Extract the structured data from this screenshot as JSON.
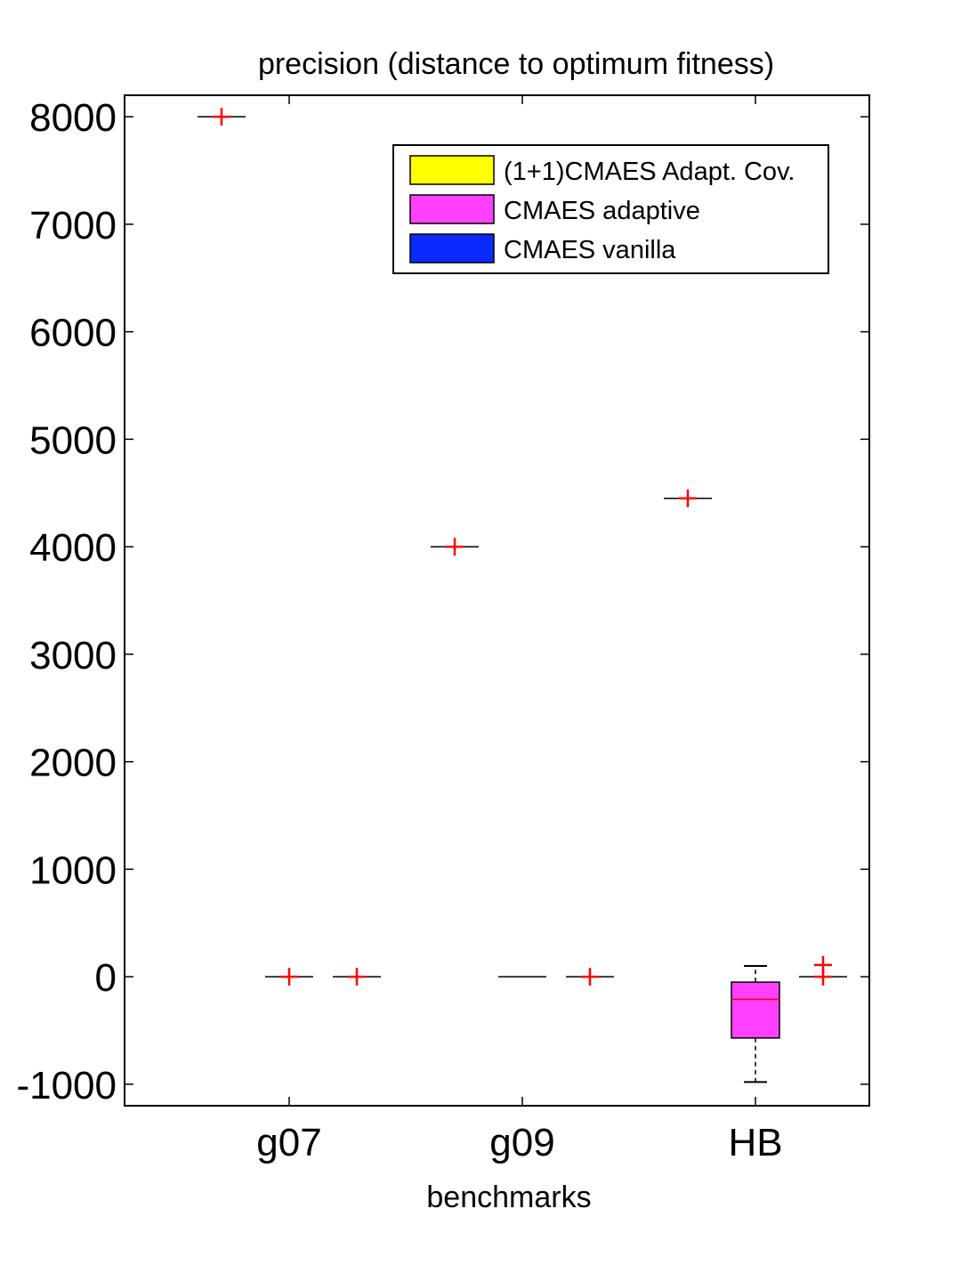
{
  "chart_data": {
    "type": "boxplot",
    "title": "precision (distance to optimum fitness)",
    "xlabel": "benchmarks",
    "ylabel": "",
    "ylim": [
      -1200,
      8200
    ],
    "yticks": [
      -1000,
      0,
      1000,
      2000,
      3000,
      4000,
      5000,
      6000,
      7000,
      8000
    ],
    "ytick_labels": [
      "-1000",
      "0",
      "1000",
      "2000",
      "3000",
      "4000",
      "5000",
      "6000",
      "7000",
      "8000"
    ],
    "categories": [
      "g07",
      "g09",
      "HB"
    ],
    "legend": {
      "placement": "top-right"
    },
    "grid": false,
    "series": [
      {
        "name": "(1+1)CMAES Adapt. Cov.",
        "color": "#ffff00",
        "boxes": [
          {
            "category": "g07",
            "q1": 8000,
            "median": 8000,
            "q3": 8000,
            "whisker_low": 8000,
            "whisker_high": 8000,
            "outliers": [
              8000
            ]
          },
          {
            "category": "g09",
            "q1": 4000,
            "median": 4000,
            "q3": 4000,
            "whisker_low": 4000,
            "whisker_high": 4000,
            "outliers": [
              4000
            ]
          },
          {
            "category": "HB",
            "q1": 4450,
            "median": 4450,
            "q3": 4450,
            "whisker_low": 4450,
            "whisker_high": 4450,
            "outliers": [
              4450
            ]
          }
        ]
      },
      {
        "name": "CMAES adaptive",
        "color": "#ff40ff",
        "boxes": [
          {
            "category": "g07",
            "q1": 0,
            "median": 0,
            "q3": 0,
            "whisker_low": 0,
            "whisker_high": 0,
            "outliers": [
              0
            ]
          },
          {
            "category": "g09",
            "q1": 0,
            "median": 0,
            "q3": 0,
            "whisker_low": 0,
            "whisker_high": 0,
            "outliers": []
          },
          {
            "category": "HB",
            "q1": -570,
            "median": -210,
            "q3": -50,
            "whisker_low": -980,
            "whisker_high": 100,
            "outliers": []
          }
        ]
      },
      {
        "name": "CMAES vanilla",
        "color": "#0a2bff",
        "boxes": [
          {
            "category": "g07",
            "q1": 0,
            "median": 0,
            "q3": 0,
            "whisker_low": 0,
            "whisker_high": 0,
            "outliers": [
              0
            ]
          },
          {
            "category": "g09",
            "q1": 0,
            "median": 0,
            "q3": 0,
            "whisker_low": 0,
            "whisker_high": 0,
            "outliers": [
              0
            ]
          },
          {
            "category": "HB",
            "q1": 0,
            "median": 0,
            "q3": 0,
            "whisker_low": 0,
            "whisker_high": 0,
            "outliers": [
              0,
              110
            ]
          }
        ]
      }
    ]
  }
}
